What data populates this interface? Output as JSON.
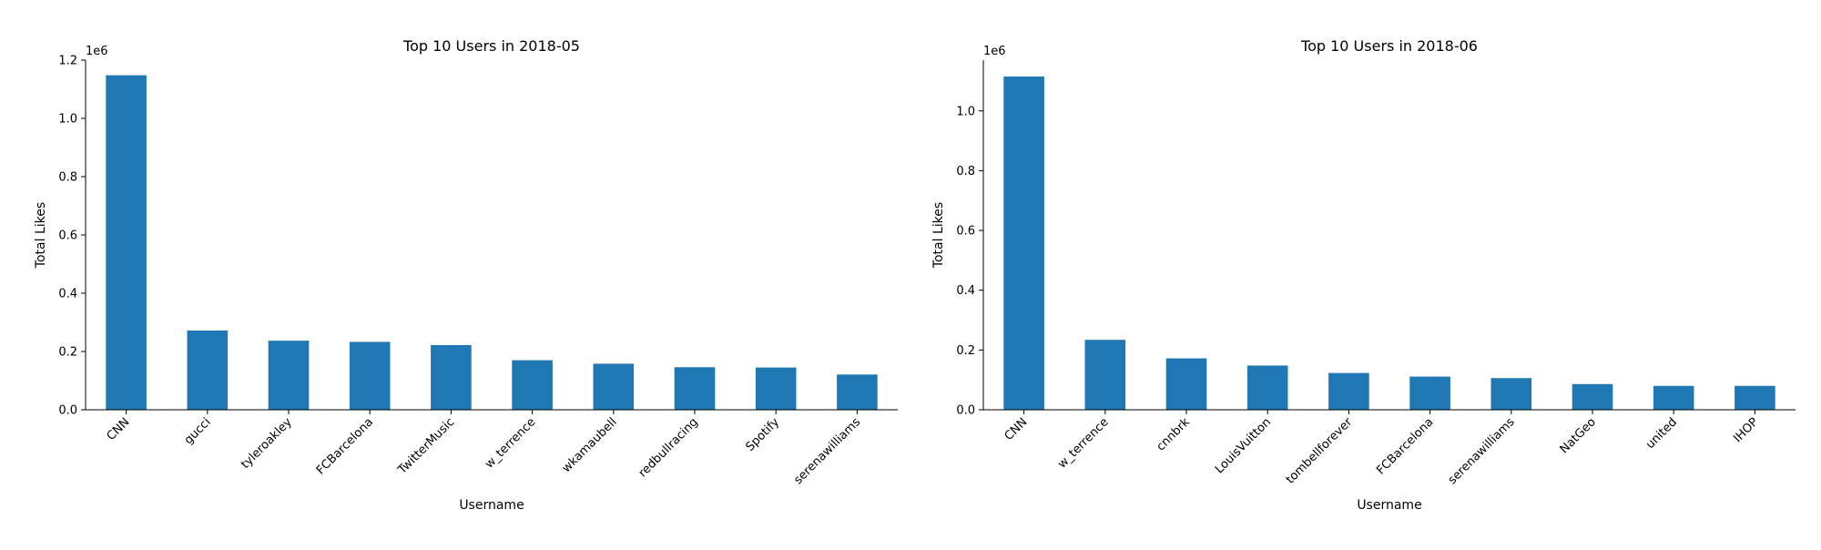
{
  "chart_data": [
    {
      "type": "bar",
      "title": "Top 10 Users in 2018-05",
      "xlabel": "Username",
      "ylabel": "Total Likes",
      "y_multiplier_label": "1e6",
      "ylim": [
        0,
        1.2
      ],
      "yticks": [
        "0.0",
        "0.2",
        "0.4",
        "0.6",
        "0.8",
        "1.0",
        "1.2"
      ],
      "categories": [
        "CNN",
        "gucci",
        "tyleroakley",
        "FCBarcelona",
        "TwitterMusic",
        "w_terrence",
        "wkamaubell",
        "redbullracing",
        "Spotify",
        "serenawilliams"
      ],
      "values": [
        1.148,
        0.272,
        0.237,
        0.233,
        0.222,
        0.17,
        0.158,
        0.146,
        0.145,
        0.121
      ],
      "grid": false,
      "bar_color": "#1f77b4"
    },
    {
      "type": "bar",
      "title": "Top 10 Users in 2018-06",
      "xlabel": "Username",
      "ylabel": "Total Likes",
      "y_multiplier_label": "1e6",
      "ylim": [
        0,
        1.17
      ],
      "yticks": [
        "0.0",
        "0.2",
        "0.4",
        "0.6",
        "0.8",
        "1.0"
      ],
      "categories": [
        "CNN",
        "w_terrence",
        "cnnbrk",
        "LouisVuitton",
        "tombellforever",
        "FCBarcelona",
        "serenawilliams",
        "NatGeo",
        "united",
        "IHOP"
      ],
      "values": [
        1.115,
        0.234,
        0.172,
        0.148,
        0.123,
        0.111,
        0.106,
        0.086,
        0.08,
        0.08
      ],
      "grid": false,
      "bar_color": "#1f77b4"
    }
  ]
}
